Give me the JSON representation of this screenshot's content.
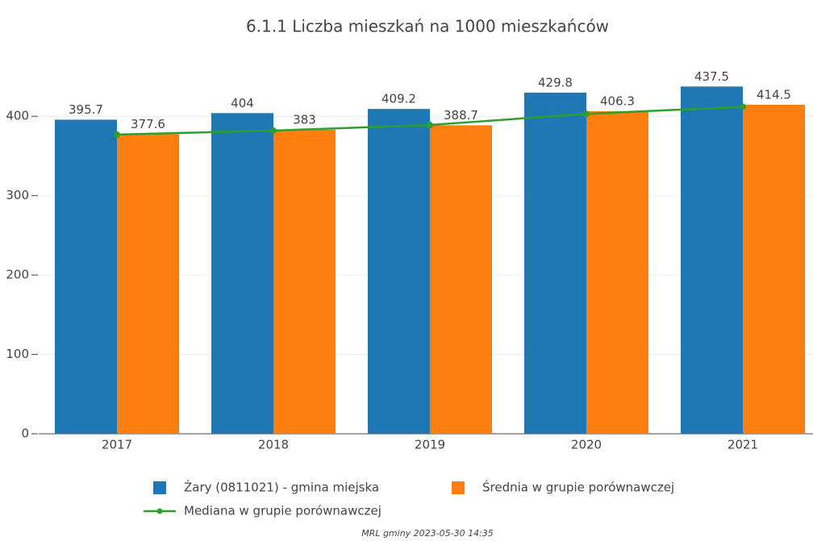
{
  "chart_data": {
    "type": "bar",
    "title": "6.1.1 Liczba mieszkań na 1000 mieszkańców",
    "categories": [
      "2017",
      "2018",
      "2019",
      "2020",
      "2021"
    ],
    "series": [
      {
        "name": "Żary (0811021) - gmina miejska",
        "color": "#1f77b4",
        "values": [
          395.7,
          404,
          409.2,
          429.8,
          437.5
        ]
      },
      {
        "name": "Średnia w grupie porównawczej",
        "color": "#ff7f0e",
        "values": [
          377.6,
          383,
          388.7,
          406.3,
          414.5
        ]
      },
      {
        "name": "Mediana w grupie porównawczej",
        "color": "#2ca02c",
        "type": "line",
        "values": [
          377,
          382,
          389,
          403,
          412
        ]
      }
    ],
    "ylim": [
      0,
      450
    ],
    "yticks": [
      0,
      100,
      200,
      300,
      400
    ],
    "grid": true,
    "footer": "MRL gminy 2023-05-30 14:35"
  }
}
